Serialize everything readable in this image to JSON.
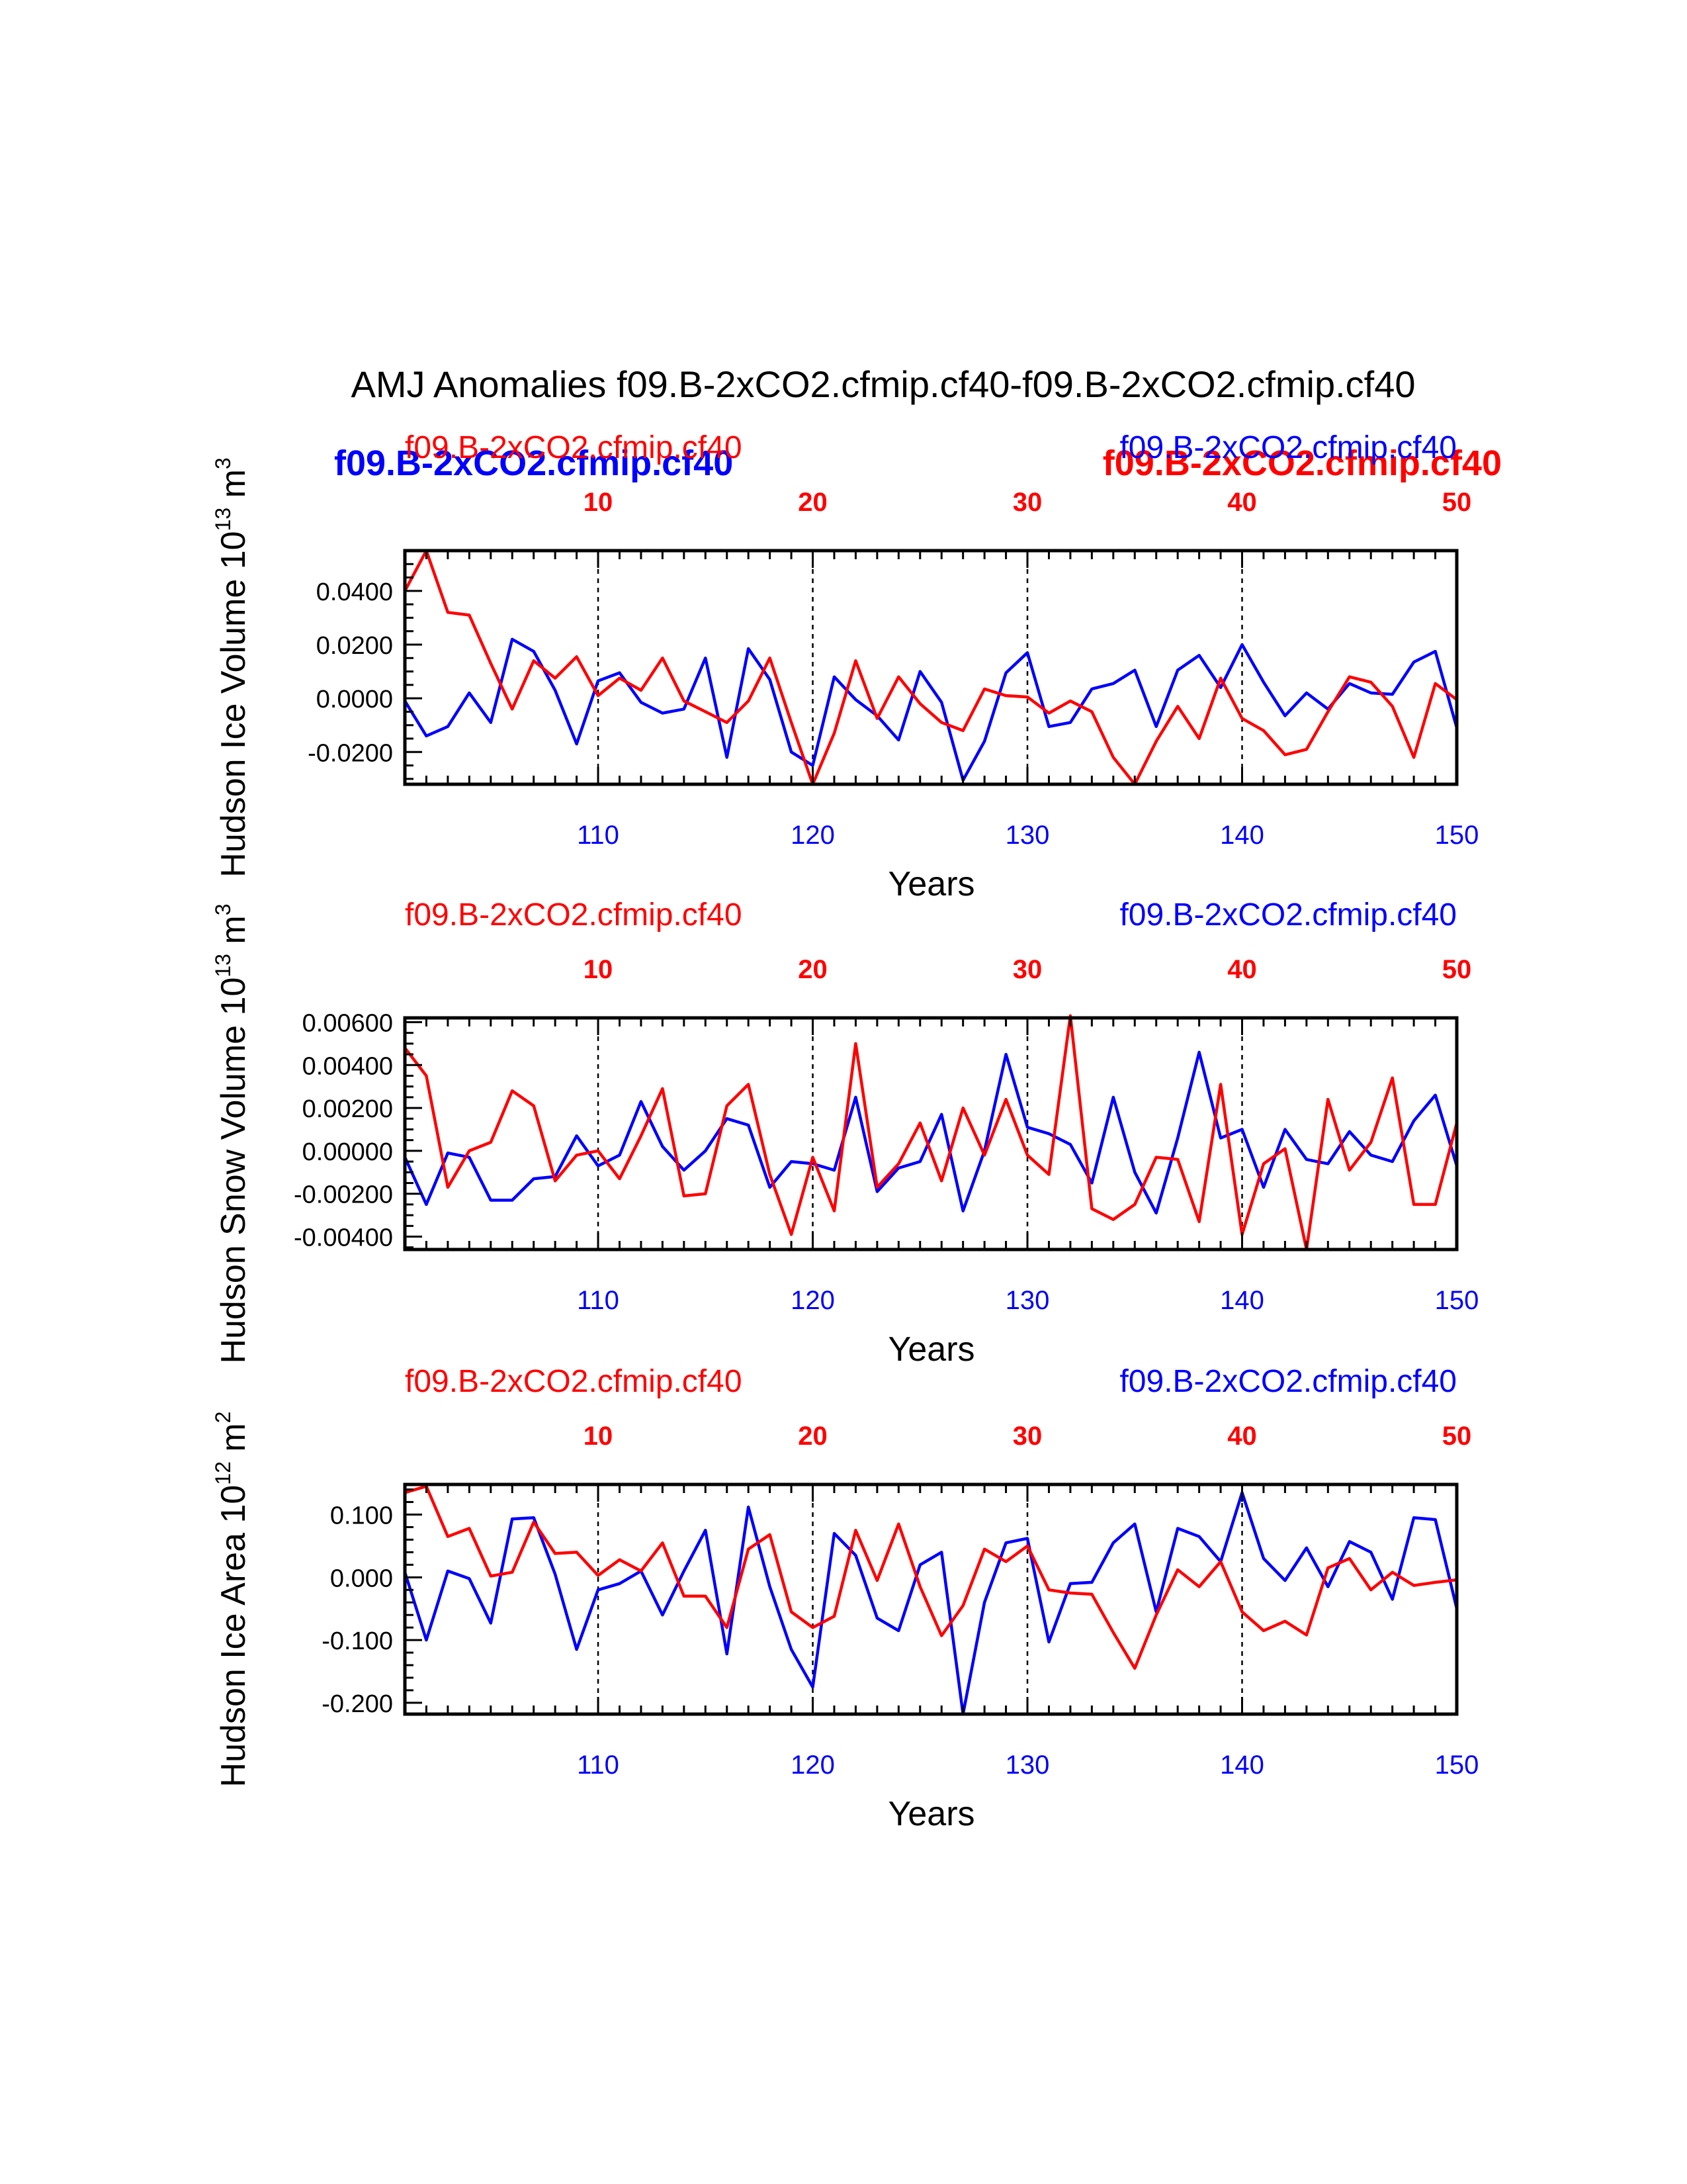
{
  "page": {
    "title": "AMJ Anomalies f09.B-2xCO2.cfmip.cf40-f09.B-2xCO2.cfmip.cf40"
  },
  "colors": {
    "case1": "#ff0000",
    "case2": "#0000ff",
    "axis": "#000000"
  },
  "extra_labels": {
    "bold_blue": "f09.B-2xCO2.cfmip.cf40",
    "bold_red": "f09.B-2xCO2.cfmip.cf40"
  },
  "chart_data": [
    {
      "type": "line",
      "id": "ice-volume",
      "ylabel": "Hudson Ice Volume 10",
      "ylabel_exp": "13",
      "ylabel_unit": " m",
      "ylabel_unit_exp": "3",
      "xlabel": "Years",
      "case_label_left": "f09.B-2xCO2.cfmip.cf40",
      "case_label_right": "f09.B-2xCO2.cfmip.cf40",
      "bottom_axis": {
        "range": [
          101,
          150
        ],
        "ticks": [
          110,
          120,
          130,
          140,
          150
        ],
        "tick_labels": [
          "110",
          "120",
          "130",
          "140",
          "150"
        ]
      },
      "top_axis": {
        "range": [
          1,
          50
        ],
        "ticks": [
          10,
          20,
          30,
          40,
          50
        ],
        "tick_labels": [
          "10",
          "20",
          "30",
          "40",
          "50"
        ]
      },
      "ylim": [
        -0.032,
        0.055
      ],
      "yticks": [
        -0.02,
        0.0,
        0.02,
        0.04
      ],
      "ytick_labels": [
        "-0.0200",
        "0.0000",
        "0.0200",
        "0.0400"
      ],
      "yminor_step": 0.005,
      "series": [
        {
          "name": "f09.B-2xCO2.cfmip.cf40 (years 101-150)",
          "axis": "bottom",
          "color": "#0000ff",
          "x": [
            101,
            102,
            103,
            104,
            105,
            106,
            107,
            108,
            109,
            110,
            111,
            112,
            113,
            114,
            115,
            116,
            117,
            118,
            119,
            120,
            121,
            122,
            123,
            124,
            125,
            126,
            127,
            128,
            129,
            130,
            131,
            132,
            133,
            134,
            135,
            136,
            137,
            138,
            139,
            140,
            141,
            142,
            143,
            144,
            145,
            146,
            147,
            148,
            149,
            150
          ],
          "values": [
            -0.001,
            -0.014,
            -0.0105,
            0.002,
            -0.009,
            0.022,
            0.0175,
            0.003,
            -0.017,
            0.0065,
            0.0095,
            -0.0015,
            -0.0055,
            -0.004,
            0.015,
            -0.022,
            0.0185,
            0.007,
            -0.02,
            -0.025,
            0.008,
            -0.0005,
            -0.0065,
            -0.0155,
            0.01,
            -0.0015,
            -0.0305,
            -0.016,
            0.0095,
            0.017,
            -0.0105,
            -0.009,
            0.0035,
            0.0055,
            0.0105,
            -0.0105,
            0.0105,
            0.016,
            0.004,
            0.02,
            0.006,
            -0.0065,
            0.002,
            -0.004,
            0.0055,
            0.002,
            0.0015,
            0.0135,
            0.0175,
            -0.011
          ]
        },
        {
          "name": "f09.B-2xCO2.cfmip.cf40 (years 1-50)",
          "axis": "top",
          "color": "#ff0000",
          "x": [
            1,
            2,
            3,
            4,
            5,
            6,
            7,
            8,
            9,
            10,
            11,
            12,
            13,
            14,
            15,
            16,
            17,
            18,
            19,
            20,
            21,
            22,
            23,
            24,
            25,
            26,
            27,
            28,
            29,
            30,
            31,
            32,
            33,
            34,
            35,
            36,
            37,
            38,
            39,
            40,
            41,
            42,
            43,
            44,
            45,
            46,
            47,
            48,
            49,
            50
          ],
          "values": [
            0.04,
            0.055,
            0.032,
            0.031,
            0.013,
            -0.004,
            0.014,
            0.0075,
            0.0155,
            0.001,
            0.0075,
            0.003,
            0.015,
            -0.001,
            -0.005,
            -0.009,
            -0.001,
            0.015,
            -0.009,
            -0.032,
            -0.013,
            0.014,
            -0.0075,
            0.008,
            -0.002,
            -0.009,
            -0.012,
            0.0035,
            0.001,
            0.0005,
            -0.0055,
            -0.001,
            -0.005,
            -0.022,
            -0.032,
            -0.016,
            -0.003,
            -0.015,
            0.0075,
            -0.0075,
            -0.012,
            -0.021,
            -0.019,
            -0.005,
            0.008,
            0.006,
            -0.003,
            -0.022,
            0.0055,
            -0.0005
          ]
        }
      ]
    },
    {
      "type": "line",
      "id": "snow-volume",
      "ylabel": "Hudson Snow Volume 10",
      "ylabel_exp": "13",
      "ylabel_unit": " m",
      "ylabel_unit_exp": "3",
      "xlabel": "Years",
      "case_label_left": "f09.B-2xCO2.cfmip.cf40",
      "case_label_right": "f09.B-2xCO2.cfmip.cf40",
      "bottom_axis": {
        "range": [
          101,
          150
        ],
        "ticks": [
          110,
          120,
          130,
          140,
          150
        ],
        "tick_labels": [
          "110",
          "120",
          "130",
          "140",
          "150"
        ]
      },
      "top_axis": {
        "range": [
          1,
          50
        ],
        "ticks": [
          10,
          20,
          30,
          40,
          50
        ],
        "tick_labels": [
          "10",
          "20",
          "30",
          "40",
          "50"
        ]
      },
      "ylim": [
        -0.0046,
        0.0062
      ],
      "yticks": [
        -0.004,
        -0.002,
        0.0,
        0.002,
        0.004,
        0.006
      ],
      "ytick_labels": [
        "-0.00400",
        "-0.00200",
        "0.00000",
        "0.00200",
        "0.00400",
        "0.00600"
      ],
      "yminor_step": 0.0005,
      "series": [
        {
          "name": "f09.B-2xCO2.cfmip.cf40 (years 101-150)",
          "axis": "bottom",
          "color": "#0000ff",
          "x": [
            101,
            102,
            103,
            104,
            105,
            106,
            107,
            108,
            109,
            110,
            111,
            112,
            113,
            114,
            115,
            116,
            117,
            118,
            119,
            120,
            121,
            122,
            123,
            124,
            125,
            126,
            127,
            128,
            129,
            130,
            131,
            132,
            133,
            134,
            135,
            136,
            137,
            138,
            139,
            140,
            141,
            142,
            143,
            144,
            145,
            146,
            147,
            148,
            149,
            150
          ],
          "values": [
            -0.0003,
            -0.0025,
            -0.0001,
            -0.0003,
            -0.0023,
            -0.0023,
            -0.0013,
            -0.0012,
            0.0007,
            -0.0007,
            -0.0002,
            0.0023,
            0.0002,
            -0.0009,
            0.0,
            0.0015,
            0.0012,
            -0.0017,
            -0.0005,
            -0.0006,
            -0.0009,
            0.0025,
            -0.0019,
            -0.0008,
            -0.0005,
            0.0017,
            -0.0028,
            0.0,
            0.0045,
            0.0011,
            0.0008,
            0.0003,
            -0.0015,
            0.0025,
            -0.001,
            -0.0029,
            0.0006,
            0.0046,
            0.0006,
            0.001,
            -0.0017,
            0.001,
            -0.0004,
            -0.0006,
            0.0009,
            -0.0002,
            -0.0005,
            0.0014,
            0.0026,
            -0.0007
          ]
        },
        {
          "name": "f09.B-2xCO2.cfmip.cf40 (years 1-50)",
          "axis": "top",
          "color": "#ff0000",
          "x": [
            1,
            2,
            3,
            4,
            5,
            6,
            7,
            8,
            9,
            10,
            11,
            12,
            13,
            14,
            15,
            16,
            17,
            18,
            19,
            20,
            21,
            22,
            23,
            24,
            25,
            26,
            27,
            28,
            29,
            30,
            31,
            32,
            33,
            34,
            35,
            36,
            37,
            38,
            39,
            40,
            41,
            42,
            43,
            44,
            45,
            46,
            47,
            48,
            49,
            50
          ],
          "values": [
            0.0048,
            0.0035,
            -0.0017,
            0.0,
            0.0004,
            0.0028,
            0.0021,
            -0.0014,
            -0.0002,
            0.0,
            -0.0013,
            0.0007,
            0.0029,
            -0.0021,
            -0.002,
            0.0021,
            0.0031,
            -0.0011,
            -0.0039,
            -0.0003,
            -0.0028,
            0.005,
            -0.0017,
            -0.0006,
            0.0013,
            -0.0014,
            0.002,
            -0.0002,
            0.0024,
            -0.0002,
            -0.0011,
            0.0063,
            -0.0027,
            -0.0032,
            -0.0025,
            -0.0003,
            -0.0004,
            -0.0033,
            0.0031,
            -0.0039,
            -0.0006,
            0.0001,
            -0.0046,
            0.0024,
            -0.0009,
            0.0004,
            0.0034,
            -0.0025,
            -0.0025,
            0.0013
          ]
        }
      ]
    },
    {
      "type": "line",
      "id": "ice-area",
      "ylabel": "Hudson Ice Area 10",
      "ylabel_exp": "12",
      "ylabel_unit": " m",
      "ylabel_unit_exp": "2",
      "xlabel": "Years",
      "case_label_left": "f09.B-2xCO2.cfmip.cf40",
      "case_label_right": "f09.B-2xCO2.cfmip.cf40",
      "bottom_axis": {
        "range": [
          101,
          150
        ],
        "ticks": [
          110,
          120,
          130,
          140,
          150
        ],
        "tick_labels": [
          "110",
          "120",
          "130",
          "140",
          "150"
        ]
      },
      "top_axis": {
        "range": [
          1,
          50
        ],
        "ticks": [
          10,
          20,
          30,
          40,
          50
        ],
        "tick_labels": [
          "10",
          "20",
          "30",
          "40",
          "50"
        ]
      },
      "ylim": [
        -0.218,
        0.148
      ],
      "yticks": [
        -0.2,
        -0.1,
        0.0,
        0.1
      ],
      "ytick_labels": [
        "-0.200",
        "-0.100",
        "0.000",
        "0.100"
      ],
      "yminor_step": 0.02,
      "series": [
        {
          "name": "f09.B-2xCO2.cfmip.cf40 (years 101-150)",
          "axis": "bottom",
          "color": "#0000ff",
          "x": [
            101,
            102,
            103,
            104,
            105,
            106,
            107,
            108,
            109,
            110,
            111,
            112,
            113,
            114,
            115,
            116,
            117,
            118,
            119,
            120,
            121,
            122,
            123,
            124,
            125,
            126,
            127,
            128,
            129,
            130,
            131,
            132,
            133,
            134,
            135,
            136,
            137,
            138,
            139,
            140,
            141,
            142,
            143,
            144,
            145,
            146,
            147,
            148,
            149,
            150
          ],
          "values": [
            0.008,
            -0.1,
            0.01,
            -0.002,
            -0.073,
            0.093,
            0.095,
            0.005,
            -0.115,
            -0.02,
            -0.01,
            0.01,
            -0.06,
            0.01,
            0.075,
            -0.122,
            0.112,
            -0.015,
            -0.115,
            -0.175,
            0.07,
            0.035,
            -0.065,
            -0.085,
            0.02,
            0.04,
            -0.218,
            -0.04,
            0.055,
            0.062,
            -0.103,
            -0.01,
            -0.008,
            0.055,
            0.085,
            -0.055,
            0.078,
            0.065,
            0.025,
            0.135,
            0.03,
            -0.005,
            0.047,
            -0.015,
            0.057,
            0.04,
            -0.035,
            0.095,
            0.092,
            -0.05
          ]
        },
        {
          "name": "f09.B-2xCO2.cfmip.cf40 (years 1-50)",
          "axis": "top",
          "color": "#ff0000",
          "x": [
            1,
            2,
            3,
            4,
            5,
            6,
            7,
            8,
            9,
            10,
            11,
            12,
            13,
            14,
            15,
            16,
            17,
            18,
            19,
            20,
            21,
            22,
            23,
            24,
            25,
            26,
            27,
            28,
            29,
            30,
            31,
            32,
            33,
            34,
            35,
            36,
            37,
            38,
            39,
            40,
            41,
            42,
            43,
            44,
            45,
            46,
            47,
            48,
            49,
            50
          ],
          "values": [
            0.135,
            0.145,
            0.065,
            0.078,
            0.002,
            0.008,
            0.088,
            0.038,
            0.04,
            0.003,
            0.028,
            0.01,
            0.055,
            -0.03,
            -0.03,
            -0.08,
            0.045,
            0.068,
            -0.055,
            -0.08,
            -0.062,
            0.075,
            -0.005,
            0.085,
            -0.015,
            -0.093,
            -0.045,
            0.045,
            0.025,
            0.05,
            -0.02,
            -0.025,
            -0.027,
            -0.088,
            -0.145,
            -0.06,
            0.012,
            -0.015,
            0.025,
            -0.055,
            -0.085,
            -0.07,
            -0.092,
            0.015,
            0.03,
            -0.02,
            0.008,
            -0.013,
            -0.008,
            -0.004
          ]
        }
      ]
    }
  ]
}
